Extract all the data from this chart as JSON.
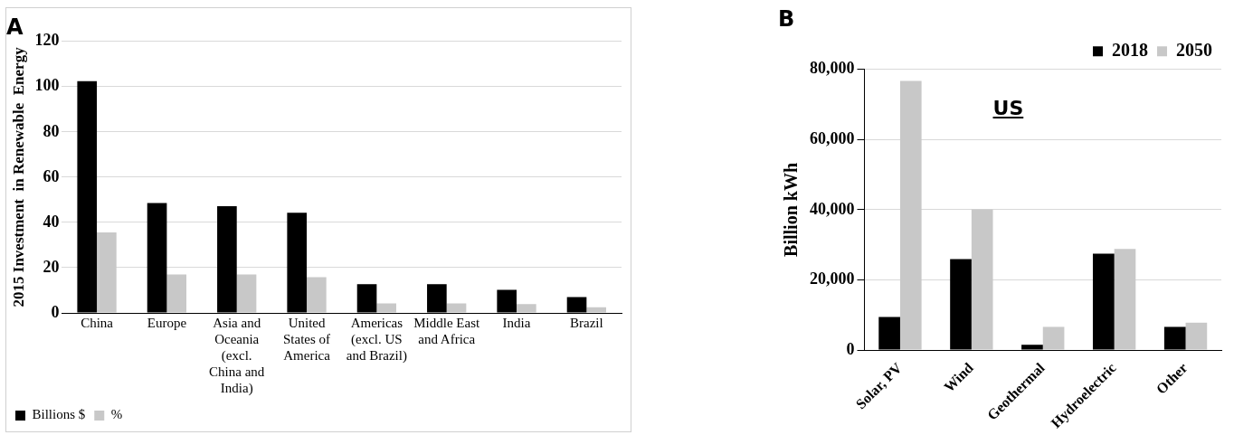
{
  "chart_data": [
    {
      "type": "bar",
      "title": "A",
      "ylabel": "2015 Investment  in Renewable  Energy",
      "categories": [
        "China",
        "Europe",
        "Asia and Oceania (excl. China and India)",
        "United States of America",
        "Americas (excl. US and Brazil)",
        "Middle East and Africa",
        "India",
        "Brazil"
      ],
      "series": [
        {
          "name": "Billions $",
          "color": "#000000",
          "values": [
            102.4,
            48.6,
            47.2,
            44.3,
            12.7,
            12.7,
            10.2,
            7
          ]
        },
        {
          "name": "%",
          "color": "#c8c8c8",
          "values": [
            35.6,
            17,
            17,
            15.8,
            4.2,
            4.2,
            3.9,
            2.5
          ]
        }
      ],
      "ylim": [
        0,
        120
      ],
      "yticks": [
        0,
        20,
        40,
        60,
        80,
        100,
        120
      ],
      "grid": "y",
      "legend": "bottom left"
    },
    {
      "type": "bar",
      "title": "B",
      "ylabel": "Billion kWh",
      "annotations": [
        "US"
      ],
      "categories": [
        "Solar, PV",
        "Wind",
        "Geothermal",
        "Hydroelectric",
        "Other"
      ],
      "series": [
        {
          "name": "2018",
          "color": "#000000",
          "values": [
            9400,
            25900,
            1500,
            27500,
            6600
          ]
        },
        {
          "name": "2050",
          "color": "#c8c8c8",
          "values": [
            76700,
            40100,
            6600,
            28800,
            7800
          ]
        }
      ],
      "ylim": [
        0,
        80000
      ],
      "yticks": [
        {
          "value": 0,
          "label": "0"
        },
        {
          "value": 20000,
          "label": "20,000"
        },
        {
          "value": 40000,
          "label": "40,000"
        },
        {
          "value": 60000,
          "label": "60,000"
        },
        {
          "value": 80000,
          "label": "80,000"
        }
      ],
      "grid": "y",
      "legend": "top right"
    }
  ]
}
